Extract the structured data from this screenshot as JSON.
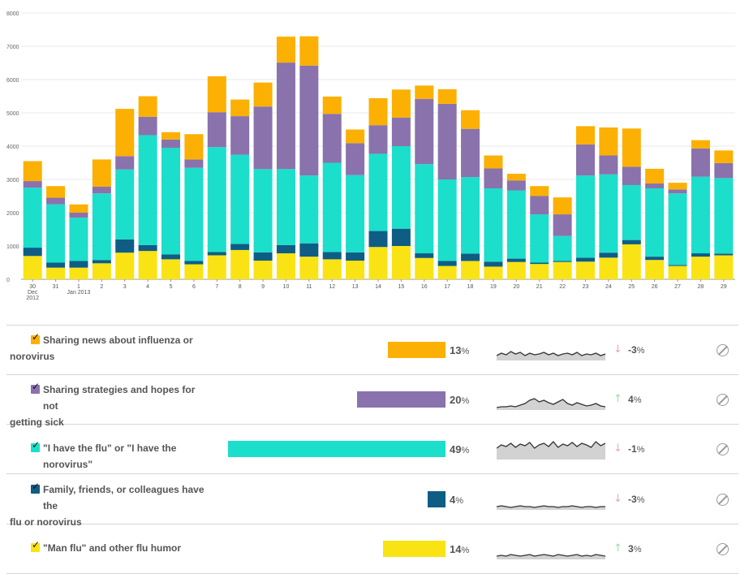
{
  "chart_data": {
    "type": "bar",
    "stacked": true,
    "ylim": [
      0,
      8000
    ],
    "yticks": [
      0,
      1000,
      2000,
      3000,
      4000,
      5000,
      6000,
      7000,
      8000
    ],
    "grid": true,
    "categories": [
      "30",
      "31",
      "1",
      "2",
      "3",
      "4",
      "5",
      "6",
      "7",
      "8",
      "9",
      "10",
      "11",
      "12",
      "13",
      "14",
      "15",
      "16",
      "17",
      "18",
      "19",
      "20",
      "21",
      "22",
      "23",
      "24",
      "25",
      "26",
      "27",
      "28",
      "29"
    ],
    "sublabels": {
      "0": [
        "Dec",
        "2012"
      ],
      "2": [
        "Jan 2013"
      ]
    },
    "series": [
      {
        "color": "#f9e314",
        "values": [
          700,
          350,
          350,
          480,
          800,
          850,
          600,
          450,
          720,
          880,
          560,
          780,
          680,
          600,
          560,
          970,
          1000,
          640,
          400,
          550,
          380,
          520,
          460,
          520,
          530,
          650,
          1050,
          580,
          400,
          680,
          720
        ]
      },
      {
        "color": "#0e5d85",
        "values": [
          250,
          150,
          200,
          100,
          400,
          180,
          150,
          100,
          100,
          180,
          250,
          250,
          400,
          220,
          250,
          480,
          520,
          140,
          150,
          220,
          150,
          100,
          40,
          30,
          120,
          150,
          130,
          100,
          30,
          100,
          50
        ]
      },
      {
        "color": "#1bdecb",
        "values": [
          1800,
          1750,
          1300,
          2000,
          2100,
          3300,
          3200,
          2800,
          3150,
          2680,
          2500,
          2280,
          2040,
          2680,
          2320,
          2320,
          2480,
          2680,
          2450,
          2300,
          2200,
          2050,
          1450,
          750,
          2470,
          2350,
          1650,
          2050,
          2150,
          2300,
          2270
        ]
      },
      {
        "color": "#8a72ad",
        "values": [
          200,
          200,
          150,
          200,
          400,
          550,
          250,
          250,
          1050,
          1160,
          1880,
          3200,
          3300,
          1470,
          960,
          860,
          860,
          1960,
          2270,
          1450,
          600,
          300,
          550,
          650,
          930,
          570,
          550,
          150,
          120,
          850,
          450
        ]
      },
      {
        "color": "#fbb003",
        "values": [
          600,
          350,
          250,
          820,
          1420,
          620,
          220,
          760,
          1080,
          500,
          720,
          780,
          880,
          520,
          410,
          810,
          840,
          400,
          440,
          560,
          390,
          200,
          300,
          510,
          550,
          840,
          1150,
          440,
          200,
          250,
          380
        ]
      }
    ]
  },
  "legend": [
    {
      "label": "Sharing news about influenza or norovirus",
      "line1": "Sharing news about influenza or",
      "line2": "norovirus",
      "color": "#fbb003",
      "share": 13,
      "pct_text": "13",
      "change_text": "-3",
      "direction": "down",
      "checked": true,
      "spark": [
        6,
        9,
        7,
        11,
        8,
        10,
        6,
        9,
        7,
        8,
        10,
        7,
        9,
        6,
        8,
        9,
        7,
        10,
        6,
        8,
        7,
        9,
        6,
        8
      ]
    },
    {
      "label": "Sharing strategies and hopes for not getting sick",
      "line1": "Sharing strategies and hopes for not",
      "line2": "getting sick",
      "color": "#8a72ad",
      "share": 20,
      "pct_text": "20",
      "change_text": "4",
      "direction": "up",
      "checked": true,
      "spark": [
        3,
        4,
        4,
        5,
        4,
        6,
        8,
        12,
        14,
        10,
        12,
        9,
        7,
        10,
        13,
        8,
        6,
        9,
        7,
        5,
        6,
        8,
        5,
        4
      ]
    },
    {
      "label": "\"I have the flu\" or \"I have the norovirus\"",
      "line1": "\"I have the flu\" or \"I have the norovirus\"",
      "line2": "",
      "color": "#1bdecb",
      "share": 49,
      "pct_text": "49",
      "change_text": "-1",
      "direction": "down",
      "checked": true,
      "spark": [
        14,
        18,
        16,
        20,
        15,
        19,
        17,
        21,
        14,
        18,
        20,
        16,
        22,
        15,
        19,
        17,
        21,
        16,
        20,
        18,
        15,
        22,
        17,
        20
      ]
    },
    {
      "label": "Family, friends, or colleagues have the flu or norovirus",
      "line1": "Family, friends, or colleagues have the",
      "line2": "flu or norovirus",
      "color": "#0e5d85",
      "share": 4,
      "pct_text": "4",
      "change_text": "-3",
      "direction": "down",
      "checked": true,
      "spark": [
        4,
        5,
        4,
        3,
        4,
        5,
        4,
        4,
        3,
        4,
        5,
        4,
        4,
        3,
        4,
        4,
        5,
        4,
        3,
        4,
        4,
        3,
        4,
        4
      ]
    },
    {
      "label": "\"Man flu\" and other flu humor",
      "line1": "\"Man flu\" and other flu humor",
      "line2": "",
      "color": "#f9e314",
      "share": 14,
      "pct_text": "14",
      "change_text": "3",
      "direction": "up",
      "checked": true,
      "spark": [
        4,
        5,
        4,
        6,
        5,
        4,
        5,
        6,
        4,
        5,
        6,
        5,
        4,
        6,
        5,
        4,
        5,
        6,
        4,
        5,
        4,
        6,
        5,
        4
      ]
    }
  ],
  "percent_sign": "%",
  "check_mark": "✓",
  "arrow_up": "↑",
  "arrow_down": "↓",
  "arrow_up_color": "#9fe0a4",
  "arrow_down_color": "#e3aab1",
  "spark_fill": "#d2d2d2",
  "spark_stroke": "#333333"
}
